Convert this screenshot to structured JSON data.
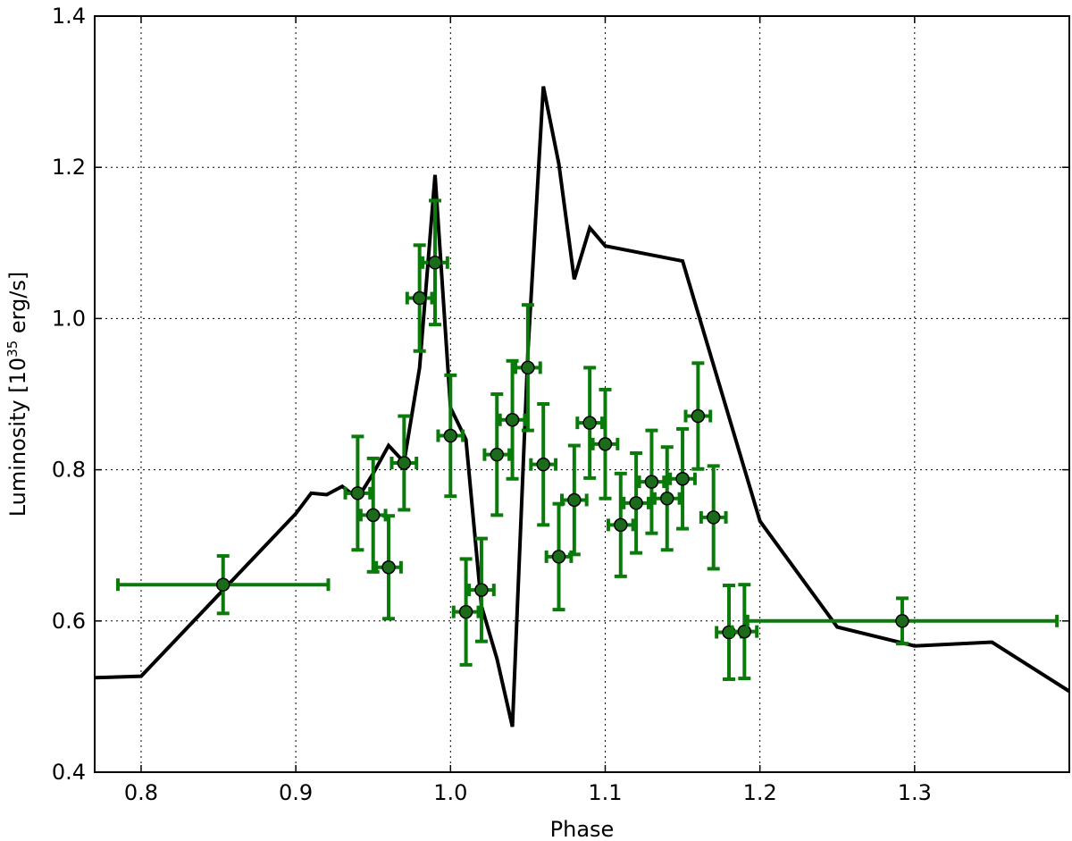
{
  "chart_data": {
    "type": "scatter",
    "title": "",
    "xlabel": "Phase",
    "ylabel_parts": {
      "main": "Luminosity [10",
      "exp": "35",
      "unit": " erg/s]"
    },
    "xlim": [
      0.77,
      1.4
    ],
    "ylim": [
      0.4,
      1.4
    ],
    "x_ticks": [
      0.8,
      0.9,
      1.0,
      1.1,
      1.2,
      1.3
    ],
    "x_tick_labels": [
      "0.8",
      "0.9",
      "1.0",
      "1.1",
      "1.2",
      "1.3"
    ],
    "y_ticks": [
      0.4,
      0.6,
      0.8,
      1.0,
      1.2,
      1.4
    ],
    "y_tick_labels": [
      "0.4",
      "0.6",
      "0.8",
      "1.0",
      "1.2",
      "1.4"
    ],
    "grid": true,
    "colors": {
      "model": "#000000",
      "data": "#0a7a0a",
      "marker_fill": "#1b6b1b"
    },
    "model_line": {
      "x": [
        0.77,
        0.8,
        0.9,
        0.91,
        0.92,
        0.93,
        0.94,
        0.95,
        0.96,
        0.97,
        0.98,
        0.99,
        1.0,
        1.01,
        1.02,
        1.03,
        1.04,
        1.05,
        1.06,
        1.07,
        1.08,
        1.09,
        1.1,
        1.15,
        1.2,
        1.25,
        1.3,
        1.35,
        1.4
      ],
      "y": [
        0.525,
        0.527,
        0.742,
        0.769,
        0.767,
        0.778,
        0.762,
        0.795,
        0.832,
        0.81,
        0.935,
        1.19,
        0.882,
        0.84,
        0.62,
        0.55,
        0.46,
        0.955,
        1.307,
        1.205,
        1.052,
        1.12,
        1.096,
        1.076,
        0.732,
        0.592,
        0.567,
        0.572,
        0.507
      ]
    },
    "points": [
      {
        "x": 0.853,
        "y": 0.648,
        "xerr": [
          0.068,
          0.068
        ],
        "yerr": 0.038
      },
      {
        "x": 0.94,
        "y": 0.769,
        "xerr": [
          0.008,
          0.008
        ],
        "yerr": 0.075
      },
      {
        "x": 0.95,
        "y": 0.74,
        "xerr": [
          0.008,
          0.008
        ],
        "yerr": 0.075
      },
      {
        "x": 0.96,
        "y": 0.671,
        "xerr": [
          0.008,
          0.008
        ],
        "yerr": 0.068
      },
      {
        "x": 0.97,
        "y": 0.809,
        "xerr": [
          0.008,
          0.008
        ],
        "yerr": 0.062
      },
      {
        "x": 0.98,
        "y": 1.027,
        "xerr": [
          0.008,
          0.008
        ],
        "yerr": 0.07
      },
      {
        "x": 0.99,
        "y": 1.074,
        "xerr": [
          0.008,
          0.008
        ],
        "yerr": 0.082
      },
      {
        "x": 1.0,
        "y": 0.845,
        "xerr": [
          0.008,
          0.008
        ],
        "yerr": 0.08
      },
      {
        "x": 1.01,
        "y": 0.612,
        "xerr": [
          0.008,
          0.008
        ],
        "yerr": 0.07
      },
      {
        "x": 1.02,
        "y": 0.641,
        "xerr": [
          0.008,
          0.008
        ],
        "yerr": 0.068
      },
      {
        "x": 1.03,
        "y": 0.82,
        "xerr": [
          0.008,
          0.008
        ],
        "yerr": 0.08
      },
      {
        "x": 1.04,
        "y": 0.866,
        "xerr": [
          0.008,
          0.008
        ],
        "yerr": 0.078
      },
      {
        "x": 1.05,
        "y": 0.935,
        "xerr": [
          0.008,
          0.008
        ],
        "yerr": 0.083
      },
      {
        "x": 1.06,
        "y": 0.807,
        "xerr": [
          0.008,
          0.008
        ],
        "yerr": 0.08
      },
      {
        "x": 1.07,
        "y": 0.685,
        "xerr": [
          0.008,
          0.008
        ],
        "yerr": 0.07
      },
      {
        "x": 1.08,
        "y": 0.76,
        "xerr": [
          0.008,
          0.008
        ],
        "yerr": 0.072
      },
      {
        "x": 1.09,
        "y": 0.862,
        "xerr": [
          0.008,
          0.008
        ],
        "yerr": 0.073
      },
      {
        "x": 1.1,
        "y": 0.834,
        "xerr": [
          0.008,
          0.008
        ],
        "yerr": 0.072
      },
      {
        "x": 1.11,
        "y": 0.727,
        "xerr": [
          0.008,
          0.008
        ],
        "yerr": 0.068
      },
      {
        "x": 1.12,
        "y": 0.756,
        "xerr": [
          0.008,
          0.008
        ],
        "yerr": 0.066
      },
      {
        "x": 1.13,
        "y": 0.784,
        "xerr": [
          0.008,
          0.008
        ],
        "yerr": 0.068
      },
      {
        "x": 1.14,
        "y": 0.762,
        "xerr": [
          0.008,
          0.008
        ],
        "yerr": 0.068
      },
      {
        "x": 1.15,
        "y": 0.788,
        "xerr": [
          0.008,
          0.008
        ],
        "yerr": 0.066
      },
      {
        "x": 1.16,
        "y": 0.871,
        "xerr": [
          0.008,
          0.008
        ],
        "yerr": 0.07
      },
      {
        "x": 1.17,
        "y": 0.737,
        "xerr": [
          0.008,
          0.008
        ],
        "yerr": 0.068
      },
      {
        "x": 1.18,
        "y": 0.585,
        "xerr": [
          0.008,
          0.008
        ],
        "yerr": 0.062
      },
      {
        "x": 1.19,
        "y": 0.586,
        "xerr": [
          0.008,
          0.008
        ],
        "yerr": 0.062
      },
      {
        "x": 1.292,
        "y": 0.6,
        "xerr": [
          0.1,
          0.1
        ],
        "yerr": 0.03
      }
    ]
  }
}
